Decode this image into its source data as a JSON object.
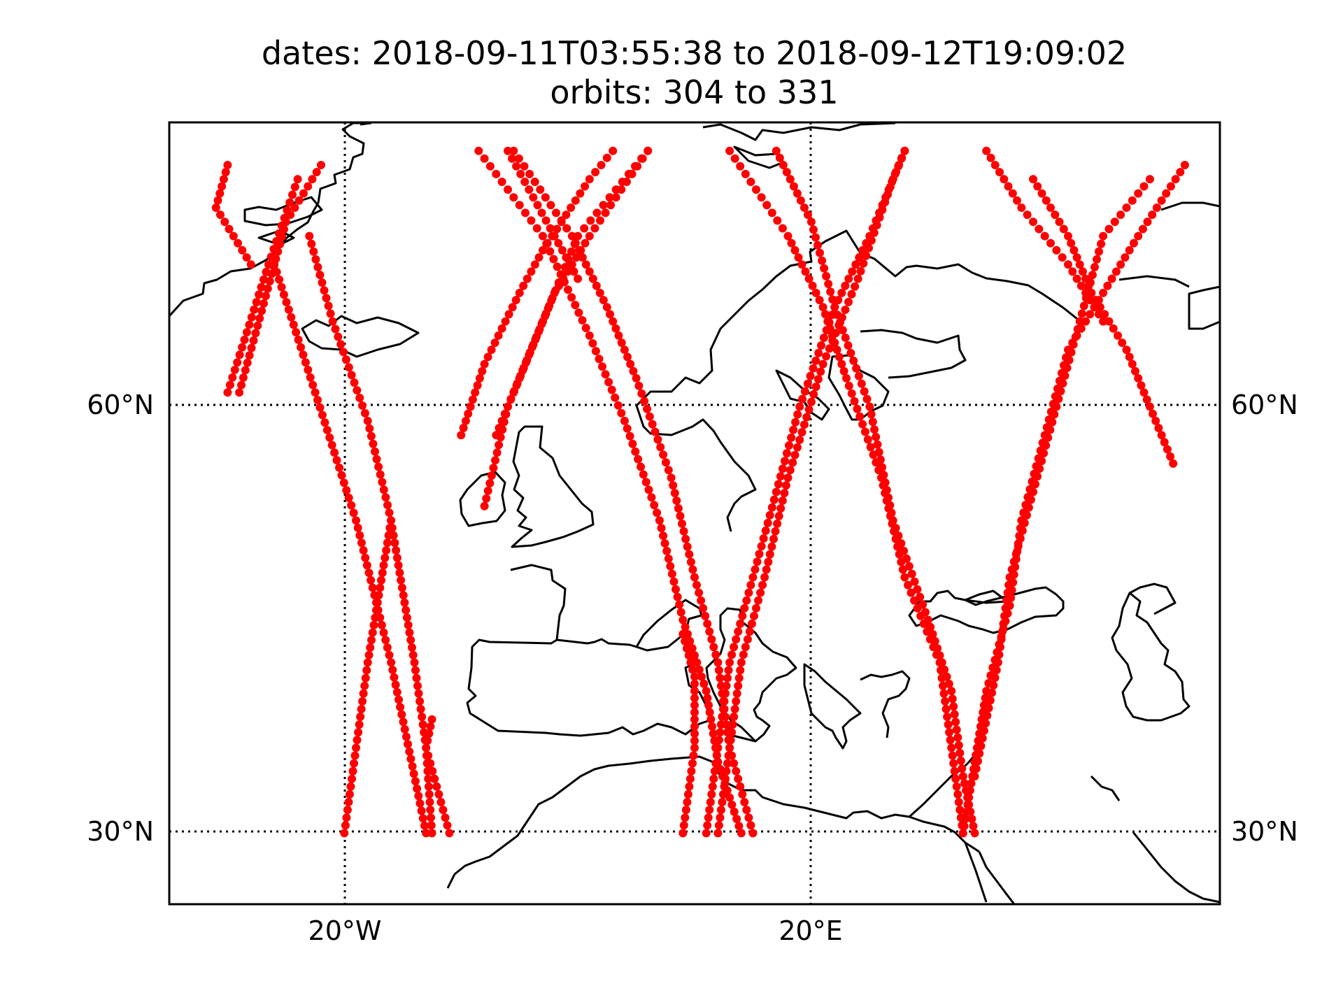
{
  "title": {
    "line1": "dates: 2018-09-11T03:55:38 to 2018-09-12T19:09:02",
    "line2": "orbits: 304 to 331"
  },
  "map": {
    "lon_range": [
      -35,
      55
    ],
    "lat_range": [
      25,
      80
    ],
    "gridlines": "dotted",
    "point_color": "#ff0000",
    "coastline_color": "#000000",
    "lat_ticks": [
      {
        "value": 60,
        "label": "60°N"
      },
      {
        "value": 30,
        "label": "30°N"
      }
    ],
    "lon_ticks": [
      {
        "value": -20,
        "label": "20°W"
      },
      {
        "value": 20,
        "label": "20°E"
      }
    ]
  },
  "chart_data": {
    "type": "scatter",
    "title": "dates: 2018-09-11T03:55:38 to 2018-09-12T19:09:02 / orbits: 304 to 331",
    "xlabel": "",
    "ylabel": "",
    "xlim": [
      -35,
      55
    ],
    "ylim": [
      25,
      80
    ],
    "series": [
      {
        "tracks": [
          [
            [
              -30,
              61
            ],
            [
              -26.5,
              70
            ],
            [
              -24,
              76
            ]
          ],
          [
            [
              -26,
              70
            ],
            [
              -19,
              52
            ],
            [
              -16,
              42
            ],
            [
              -13,
              30
            ]
          ],
          [
            [
              -12.5,
              30
            ],
            [
              -13,
              36
            ],
            [
              -14,
              42
            ],
            [
              -16,
              52
            ],
            [
              -18,
              59
            ],
            [
              -21,
              66
            ],
            [
              -23,
              72
            ]
          ],
          [
            [
              -20,
              30
            ],
            [
              -19,
              36
            ],
            [
              -18,
              42
            ],
            [
              -16,
              52
            ]
          ],
          [
            [
              -11,
              30
            ],
            [
              -13,
              36
            ],
            [
              -12.5,
              38
            ]
          ],
          [
            [
              -28,
              70
            ],
            [
              -31,
              74
            ],
            [
              -30,
              77
            ]
          ],
          [
            [
              -29,
              61
            ],
            [
              -25,
              73
            ],
            [
              -22,
              77
            ]
          ]
        ]
      },
      {
        "tracks": [
          [
            [
              -8.5,
              78
            ],
            [
              -3,
              72
            ],
            [
              1,
              65
            ],
            [
              4,
              59
            ],
            [
              7,
              52
            ],
            [
              9,
              45
            ],
            [
              11,
              40
            ],
            [
              12,
              35
            ],
            [
              14,
              30
            ]
          ],
          [
            [
              -5.5,
              78
            ],
            [
              -0.5,
              72
            ],
            [
              2.5,
              67
            ],
            [
              5,
              62
            ],
            [
              8,
              55
            ],
            [
              10,
              48
            ],
            [
              12,
              42
            ],
            [
              13,
              36
            ],
            [
              15,
              30
            ]
          ],
          [
            [
              -6,
              78
            ],
            [
              -2,
              72
            ],
            [
              0,
              69
            ]
          ],
          [
            [
              -10,
              58
            ],
            [
              -8,
              63
            ],
            [
              -5,
              68
            ],
            [
              -3,
              71
            ],
            [
              1,
              76
            ],
            [
              3,
              78
            ]
          ],
          [
            [
              -7,
              58
            ],
            [
              -5,
              62
            ],
            [
              -2,
              68
            ],
            [
              1,
              72
            ],
            [
              6,
              78
            ]
          ],
          [
            [
              -8,
              53
            ],
            [
              -6,
              60
            ],
            [
              -3,
              66
            ],
            [
              0,
              72
            ],
            [
              6,
              78
            ]
          ],
          [
            [
              12,
              30
            ],
            [
              13,
              36
            ],
            [
              14,
              42
            ],
            [
              16,
              48
            ],
            [
              18,
              55
            ],
            [
              21,
              63
            ],
            [
              24,
              69
            ],
            [
              27,
              76
            ],
            [
              28,
              78
            ]
          ],
          [
            [
              11,
              30
            ],
            [
              12,
              36
            ],
            [
              13,
              42
            ],
            [
              15,
              48
            ],
            [
              17,
              54
            ],
            [
              19,
              60
            ],
            [
              22,
              67
            ],
            [
              25,
              72
            ],
            [
              28,
              78
            ]
          ],
          [
            [
              9,
              30
            ],
            [
              10,
              36
            ],
            [
              10,
              41
            ],
            [
              9,
              44
            ]
          ]
        ]
      },
      {
        "tracks": [
          [
            [
              17,
              78
            ],
            [
              20,
              73
            ],
            [
              22,
              67
            ],
            [
              25,
              60
            ],
            [
              27,
              52
            ],
            [
              30,
              45
            ],
            [
              32,
              40
            ],
            [
              33,
              34
            ],
            [
              34,
              30
            ]
          ],
          [
            [
              13,
              78
            ],
            [
              18,
              72
            ],
            [
              21,
              67
            ],
            [
              23,
              62
            ],
            [
              26,
              55
            ],
            [
              28,
              48
            ],
            [
              31,
              42
            ],
            [
              32,
              36
            ],
            [
              33,
              30
            ]
          ],
          [
            [
              39,
              76
            ],
            [
              42,
              72
            ],
            [
              44,
              68
            ],
            [
              47,
              64
            ],
            [
              49,
              60
            ],
            [
              51,
              56
            ]
          ],
          [
            [
              52,
              77
            ],
            [
              48,
              72
            ],
            [
              45,
              68
            ],
            [
              42,
              64
            ],
            [
              40,
              58
            ],
            [
              38,
              52
            ],
            [
              37,
              46
            ],
            [
              35,
              40
            ],
            [
              34,
              35
            ],
            [
              33,
              30
            ]
          ],
          [
            [
              49,
              76
            ],
            [
              45,
              72
            ],
            [
              43,
              66
            ],
            [
              41,
              60
            ],
            [
              39,
              54
            ],
            [
              37,
              48
            ],
            [
              36,
              42
            ],
            [
              34,
              34
            ]
          ],
          [
            [
              35,
              78
            ],
            [
              38,
              74
            ],
            [
              42,
              70
            ],
            [
              45,
              66
            ]
          ]
        ]
      }
    ]
  }
}
